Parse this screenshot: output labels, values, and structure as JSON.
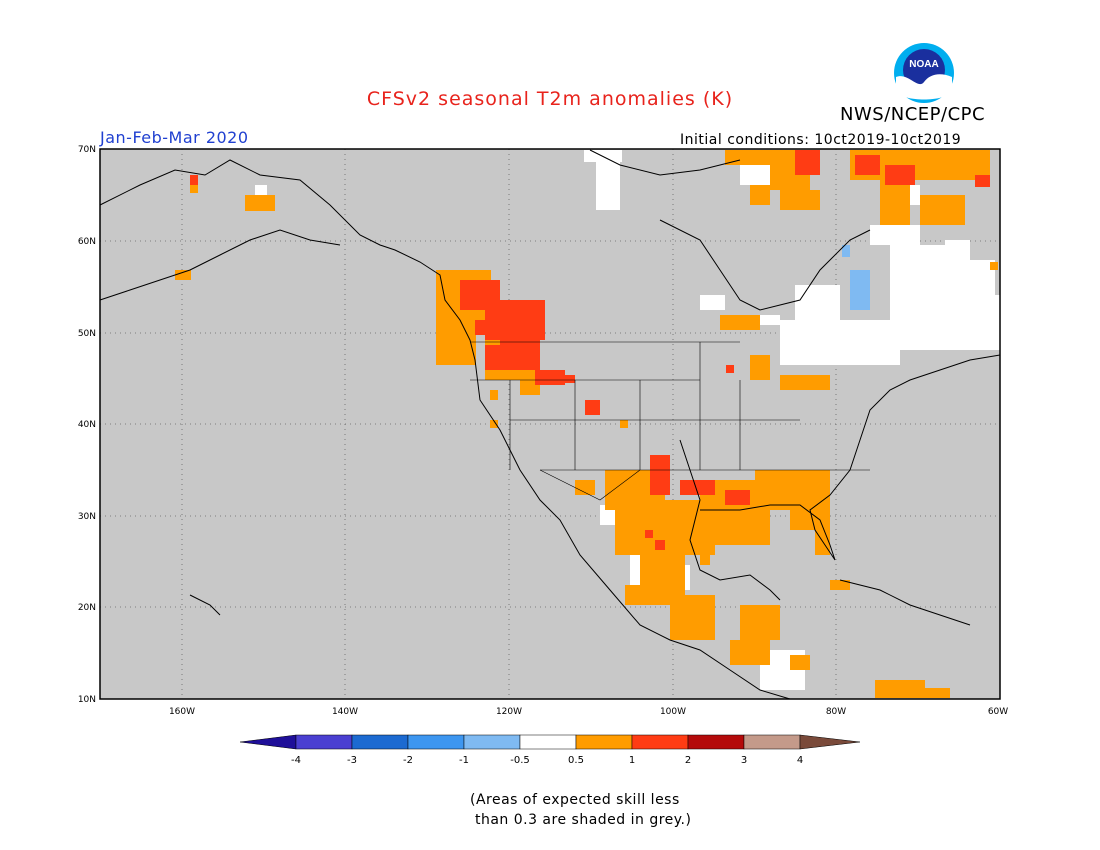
{
  "header": {
    "title": "CFSv2 seasonal T2m anomalies (K)",
    "agency": "NWS/NCEP/CPC",
    "season": "Jan-Feb-Mar 2020",
    "initial_conditions": "Initial conditions: 10ct2019-10ct2019",
    "logo_text": "NOAA"
  },
  "map": {
    "lat_labels": [
      "70N",
      "60N",
      "50N",
      "40N",
      "30N",
      "20N",
      "10N"
    ],
    "lon_labels": [
      "160W",
      "140W",
      "120W",
      "100W",
      "80W",
      "60W"
    ],
    "ocean_color": "#c8c8c8",
    "grey_meaning": "skill < 0.3"
  },
  "colorbar": {
    "levels": [
      "-4",
      "-3",
      "-2",
      "-1",
      "-0.5",
      "0.5",
      "1",
      "2",
      "3",
      "4"
    ],
    "colors": [
      "#1f0f99",
      "#4a3fd1",
      "#1c6ad1",
      "#3d96f0",
      "#7fbaf2",
      "#ffffff",
      "#ff9c00",
      "#ff3c14",
      "#b40a0a",
      "#c49a8a",
      "#7a4a3a"
    ]
  },
  "note": "(Areas of expected skill less\n than 0.3 are shaded in grey.)"
}
